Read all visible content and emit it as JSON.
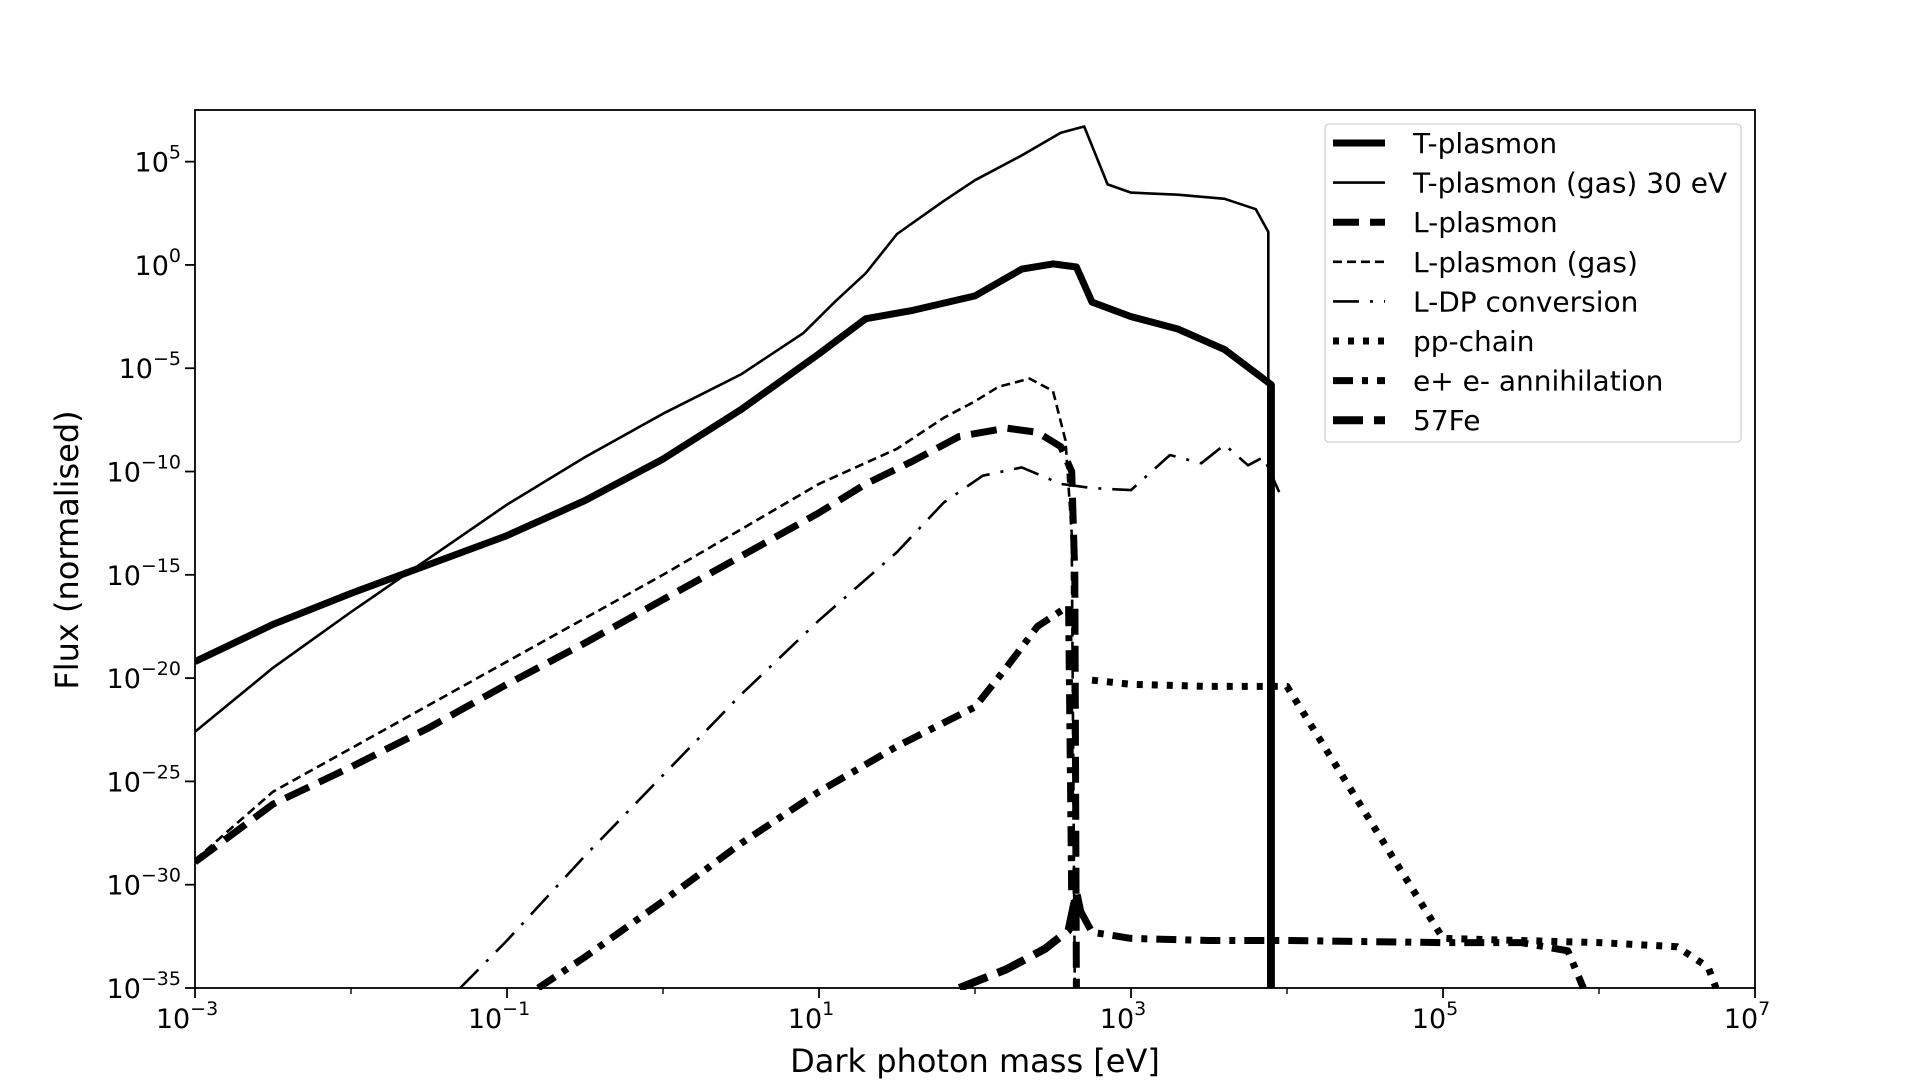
{
  "chart_data": {
    "type": "line",
    "title": "",
    "xlabel": "Dark photon mass [eV]",
    "ylabel": "Flux (normalised)",
    "xscale": "log",
    "yscale": "log",
    "xlim_exp": [
      -3,
      7
    ],
    "ylim_exp": [
      -35,
      7.5
    ],
    "xlim": [
      "1e-3",
      "1e7"
    ],
    "ylim": [
      "1e-35",
      "~3e7"
    ],
    "x_ticks": [
      {
        "base": "10",
        "exp": "−3"
      },
      {
        "base": "10",
        "exp": "−1"
      },
      {
        "base": "10",
        "exp": "1"
      },
      {
        "base": "10",
        "exp": "3"
      },
      {
        "base": "10",
        "exp": "5"
      },
      {
        "base": "10",
        "exp": "7"
      }
    ],
    "y_ticks": [
      {
        "base": "10",
        "exp": "5"
      },
      {
        "base": "10",
        "exp": "0"
      },
      {
        "base": "10",
        "exp": "−5"
      },
      {
        "base": "10",
        "exp": "−10"
      },
      {
        "base": "10",
        "exp": "−15"
      },
      {
        "base": "10",
        "exp": "−20"
      },
      {
        "base": "10",
        "exp": "−25"
      },
      {
        "base": "10",
        "exp": "−30"
      },
      {
        "base": "10",
        "exp": "−35"
      }
    ],
    "grid": false,
    "legend_position": "top-right",
    "points_are_log10": true,
    "series": [
      {
        "name": "T-plasmon",
        "color": "#000000",
        "style": "solid-thick",
        "points": [
          [
            -3,
            -19.2
          ],
          [
            -2.5,
            -17.4
          ],
          [
            -2,
            -15.9
          ],
          [
            -1.5,
            -14.5
          ],
          [
            -1,
            -13.1
          ],
          [
            -0.5,
            -11.4
          ],
          [
            0,
            -9.4
          ],
          [
            0.5,
            -7
          ],
          [
            1,
            -4.3
          ],
          [
            1.3,
            -2.6
          ],
          [
            1.6,
            -2.2
          ],
          [
            2,
            -1.5
          ],
          [
            2.3,
            -0.2
          ],
          [
            2.5,
            0.05
          ],
          [
            2.65,
            -0.1
          ],
          [
            2.75,
            -1.8
          ],
          [
            3,
            -2.5
          ],
          [
            3.3,
            -3.1
          ],
          [
            3.6,
            -4.1
          ],
          [
            3.9,
            -5.8
          ],
          [
            3.9,
            -35
          ]
        ]
      },
      {
        "name": "T-plasmon (gas) 30 eV",
        "color": "#000000",
        "style": "solid-thin",
        "points": [
          [
            -3,
            -22.6
          ],
          [
            -2.5,
            -19.5
          ],
          [
            -2,
            -16.8
          ],
          [
            -1.5,
            -14.2
          ],
          [
            -1,
            -11.6
          ],
          [
            -0.5,
            -9.3
          ],
          [
            0,
            -7.2
          ],
          [
            0.5,
            -5.3
          ],
          [
            0.9,
            -3.3
          ],
          [
            1.1,
            -1.8
          ],
          [
            1.3,
            -0.4
          ],
          [
            1.5,
            1.5
          ],
          [
            1.8,
            3.1
          ],
          [
            2,
            4.1
          ],
          [
            2.3,
            5.3
          ],
          [
            2.55,
            6.4
          ],
          [
            2.7,
            6.7
          ],
          [
            2.85,
            3.9
          ],
          [
            3,
            3.5
          ],
          [
            3.3,
            3.4
          ],
          [
            3.6,
            3.2
          ],
          [
            3.8,
            2.7
          ],
          [
            3.88,
            1.6
          ],
          [
            3.88,
            -35
          ]
        ]
      },
      {
        "name": "L-plasmon",
        "color": "#000000",
        "style": "dashed-thick",
        "points": [
          [
            -3,
            -28.9
          ],
          [
            -2.5,
            -26.1
          ],
          [
            -2,
            -24.3
          ],
          [
            -1.5,
            -22.4
          ],
          [
            -1,
            -20.3
          ],
          [
            -0.5,
            -18.3
          ],
          [
            0,
            -16.2
          ],
          [
            0.5,
            -14.1
          ],
          [
            1,
            -12
          ],
          [
            1.3,
            -10.6
          ],
          [
            1.6,
            -9.5
          ],
          [
            1.9,
            -8.3
          ],
          [
            2.2,
            -7.9
          ],
          [
            2.4,
            -8.1
          ],
          [
            2.55,
            -8.8
          ],
          [
            2.62,
            -10
          ],
          [
            2.64,
            -15
          ],
          [
            2.65,
            -35
          ]
        ]
      },
      {
        "name": "L-plasmon (gas)",
        "color": "#000000",
        "style": "dashed-thin",
        "points": [
          [
            -3,
            -28.8
          ],
          [
            -2.5,
            -25.5
          ],
          [
            -2,
            -23.4
          ],
          [
            -1.5,
            -21.3
          ],
          [
            -1,
            -19.2
          ],
          [
            -0.5,
            -17.1
          ],
          [
            0,
            -15
          ],
          [
            0.5,
            -12.8
          ],
          [
            1,
            -10.6
          ],
          [
            1.5,
            -8.9
          ],
          [
            1.8,
            -7.4
          ],
          [
            2,
            -6.6
          ],
          [
            2.15,
            -5.9
          ],
          [
            2.35,
            -5.5
          ],
          [
            2.5,
            -6.1
          ],
          [
            2.58,
            -8.5
          ],
          [
            2.62,
            -13
          ],
          [
            2.64,
            -35
          ]
        ]
      },
      {
        "name": "L-DP conversion",
        "color": "#000000",
        "style": "long-dash-dot",
        "points": [
          [
            -1.3,
            -35
          ],
          [
            -1,
            -32.7
          ],
          [
            -0.5,
            -28.6
          ],
          [
            0,
            -24.7
          ],
          [
            0.5,
            -20.8
          ],
          [
            1,
            -17.2
          ],
          [
            1.5,
            -13.9
          ],
          [
            1.8,
            -11.5
          ],
          [
            2.05,
            -10.2
          ],
          [
            2.3,
            -9.8
          ],
          [
            2.55,
            -10.6
          ],
          [
            2.75,
            -10.8
          ],
          [
            3,
            -10.9
          ],
          [
            3.25,
            -9.2
          ],
          [
            3.45,
            -9.6
          ],
          [
            3.6,
            -8.7
          ],
          [
            3.75,
            -9.7
          ],
          [
            3.85,
            -9.3
          ],
          [
            3.95,
            -11
          ]
        ]
      },
      {
        "name": "pp-chain",
        "color": "#000000",
        "style": "dotted",
        "points": [
          [
            2.75,
            -20.1
          ],
          [
            3,
            -20.3
          ],
          [
            3.5,
            -20.4
          ],
          [
            4,
            -20.4
          ],
          [
            5,
            -32.6
          ],
          [
            6,
            -32.8
          ],
          [
            6.5,
            -33
          ],
          [
            6.7,
            -34
          ],
          [
            6.75,
            -35
          ]
        ]
      },
      {
        "name": "e+ e- annihilation",
        "color": "#000000",
        "style": "dash-dot-thick",
        "points": [
          [
            -0.8,
            -35
          ],
          [
            -0.5,
            -33.5
          ],
          [
            0,
            -30.8
          ],
          [
            0.5,
            -28
          ],
          [
            1,
            -25.5
          ],
          [
            1.5,
            -23.3
          ],
          [
            2,
            -21.4
          ],
          [
            2.2,
            -19.5
          ],
          [
            2.4,
            -17.5
          ],
          [
            2.6,
            -16.5
          ],
          [
            2.62,
            -30.5
          ],
          [
            2.75,
            -32.3
          ],
          [
            3,
            -32.6
          ],
          [
            3.5,
            -32.7
          ],
          [
            4,
            -32.7
          ],
          [
            5,
            -32.8
          ],
          [
            5.5,
            -32.8
          ],
          [
            5.8,
            -33.2
          ],
          [
            5.9,
            -35
          ]
        ]
      },
      {
        "name": "57Fe",
        "color": "#000000",
        "style": "dashed-heavy",
        "points": [
          [
            1.9,
            -35
          ],
          [
            2.2,
            -34.1
          ],
          [
            2.45,
            -33.1
          ],
          [
            2.6,
            -32.2
          ],
          [
            2.65,
            -30.4
          ],
          [
            2.68,
            -31.5
          ]
        ]
      }
    ]
  }
}
